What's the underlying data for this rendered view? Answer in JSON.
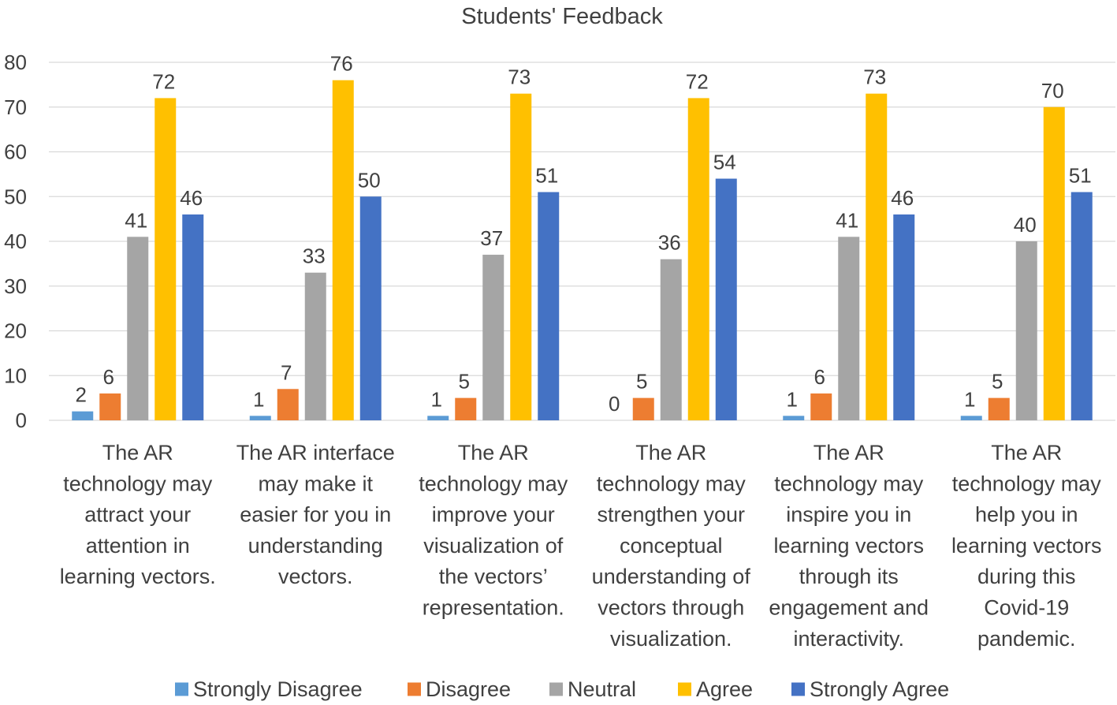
{
  "chart_data": {
    "type": "bar",
    "title": "Students' Feedback",
    "xlabel": "",
    "ylabel": "",
    "ylim": [
      0,
      80
    ],
    "yticks": [
      0,
      10,
      20,
      30,
      40,
      50,
      60,
      70,
      80
    ],
    "grid": true,
    "legend_position": "bottom",
    "categories": [
      [
        "The AR",
        "technology may",
        "attract your",
        "attention in",
        "learning vectors."
      ],
      [
        "The AR interface",
        "may make it",
        "easier for you in",
        "understanding",
        "vectors."
      ],
      [
        "The AR",
        "technology may",
        "improve your",
        "visualization of",
        "the vectors’",
        "representation."
      ],
      [
        "The AR",
        "technology may",
        "strengthen your",
        "conceptual",
        "understanding of",
        "vectors through",
        "visualization."
      ],
      [
        "The AR",
        "technology may",
        "inspire you in",
        "learning vectors",
        "through its",
        "engagement and",
        "interactivity."
      ],
      [
        "The AR",
        "technology may",
        "help you in",
        "learning vectors",
        "during this",
        "Covid-19",
        "pandemic."
      ]
    ],
    "series": [
      {
        "name": "Strongly Disagree",
        "color": "#5b9bd5",
        "values": [
          2,
          1,
          1,
          0,
          1,
          1
        ]
      },
      {
        "name": "Disagree",
        "color": "#ed7d31",
        "values": [
          6,
          7,
          5,
          5,
          6,
          5
        ]
      },
      {
        "name": "Neutral",
        "color": "#a5a5a5",
        "values": [
          41,
          33,
          37,
          36,
          41,
          40
        ]
      },
      {
        "name": "Agree",
        "color": "#ffc000",
        "values": [
          72,
          76,
          73,
          72,
          73,
          70
        ]
      },
      {
        "name": "Strongly Agree",
        "color": "#4472c4",
        "values": [
          46,
          50,
          51,
          54,
          46,
          51
        ]
      }
    ]
  }
}
